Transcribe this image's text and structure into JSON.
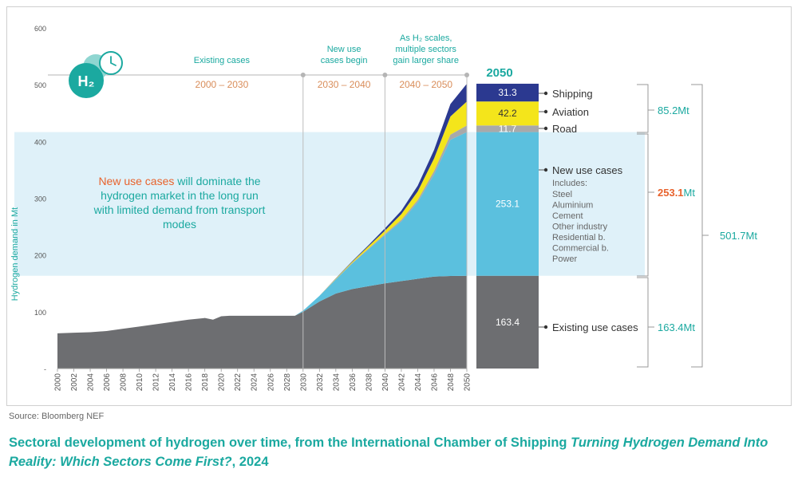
{
  "chart_data": {
    "type": "area",
    "title": "",
    "ylabel": "Hydrogen demand in Mt",
    "xlabel": "",
    "ylim": [
      0,
      600
    ],
    "yticks": [
      "-",
      "100",
      "200",
      "300",
      "400",
      "500",
      "600"
    ],
    "xlim": [
      2000,
      2050
    ],
    "x": [
      2000,
      2002,
      2004,
      2006,
      2008,
      2010,
      2012,
      2014,
      2016,
      2018,
      2019,
      2020,
      2021,
      2022,
      2024,
      2026,
      2028,
      2029,
      2030,
      2032,
      2034,
      2036,
      2038,
      2040,
      2042,
      2044,
      2046,
      2048,
      2050
    ],
    "xtick_labels": [
      "2000",
      "2002",
      "2004",
      "2006",
      "2008",
      "2010",
      "2012",
      "2014",
      "2016",
      "2018",
      "2020",
      "2022",
      "2024",
      "2026",
      "2028",
      "2030",
      "2032",
      "2034",
      "2036",
      "2038",
      "2040",
      "2042",
      "2044",
      "2046",
      "2048",
      "2050"
    ],
    "series": [
      {
        "name": "Existing use cases",
        "color": "#6d6e71",
        "values": [
          62,
          63,
          64,
          66,
          70,
          74,
          78,
          82,
          86,
          89,
          86,
          92,
          93,
          93,
          93,
          93,
          93,
          93,
          100,
          118,
          132,
          140,
          145,
          150,
          154,
          158,
          162,
          163,
          163.4
        ]
      },
      {
        "name": "New use cases",
        "color": "#5bc0de",
        "values": [
          0,
          0,
          0,
          0,
          0,
          0,
          0,
          0,
          0,
          0,
          0,
          0,
          0,
          0,
          0,
          0,
          0,
          0,
          2,
          10,
          25,
          45,
          65,
          85,
          105,
          135,
          180,
          240,
          253.1
        ]
      },
      {
        "name": "Road",
        "color": "#a9a9a9",
        "values": [
          0,
          0,
          0,
          0,
          0,
          0,
          0,
          0,
          0,
          0,
          0,
          0,
          0,
          0,
          0,
          0,
          0,
          0,
          0,
          0,
          0.5,
          1,
          1.5,
          2,
          3,
          4,
          6,
          9,
          11.7
        ]
      },
      {
        "name": "Aviation",
        "color": "#f4e51b",
        "values": [
          0,
          0,
          0,
          0,
          0,
          0,
          0,
          0,
          0,
          0,
          0,
          0,
          0,
          0,
          0,
          0,
          0,
          0,
          0,
          0,
          1,
          2,
          4,
          6,
          10,
          15,
          22,
          32,
          42.2
        ]
      },
      {
        "name": "Shipping",
        "color": "#2b3990",
        "values": [
          0,
          0,
          0,
          0,
          0,
          0,
          0,
          0,
          0,
          0,
          0,
          0,
          0,
          0,
          0,
          0,
          0,
          0,
          0,
          0,
          0.5,
          1,
          2,
          4,
          6,
          10,
          15,
          22,
          31.3
        ]
      }
    ],
    "bar_2050": {
      "label": "2050",
      "segments": [
        {
          "name": "Existing use cases",
          "value": 163.4,
          "label": "163.4",
          "color": "#6d6e71"
        },
        {
          "name": "New use cases",
          "value": 253.1,
          "label": "253.1",
          "color": "#5bc0de"
        },
        {
          "name": "Road",
          "value": 11.7,
          "label": "11.7",
          "color": "#a9a9a9"
        },
        {
          "name": "Aviation",
          "value": 42.2,
          "label": "42.2",
          "color": "#f4e51b"
        },
        {
          "name": "Shipping",
          "value": 31.3,
          "label": "31.3",
          "color": "#2b3990"
        }
      ]
    },
    "legend": {
      "shipping": "Shipping",
      "aviation": "Aviation",
      "road": "Road",
      "new_use_cases": "New use cases",
      "includes": "Includes:",
      "includes_items": [
        "Steel",
        "Aluminium",
        "Cement",
        "Other industry",
        "Residential b.",
        "Commercial b.",
        "Power"
      ],
      "existing_use_cases": "Existing use cases"
    },
    "totals": {
      "transport": "85.2Mt",
      "new_value": "253.1",
      "new_unit": "Mt",
      "existing": "163.4Mt",
      "overall": "501.7Mt"
    },
    "phases": [
      {
        "title_lines": [
          "Existing cases"
        ],
        "range": "2000 – 2030"
      },
      {
        "title_lines": [
          "New use",
          "cases begin"
        ],
        "range": "2030 – 2040"
      },
      {
        "title_lines": [
          "As H₂ scales,",
          "multiple sectors",
          "gain larger share"
        ],
        "range": "2040 – 2050"
      }
    ],
    "phase_boundaries": [
      2030,
      2040,
      2050
    ],
    "annotation": {
      "highlight": "New use cases",
      "lines": [
        " will dominate the",
        "hydrogen market in the long run",
        "with limited demand from transport",
        "modes"
      ]
    },
    "highlight_band": [
      163.4,
      416.5
    ],
    "logo_text": "H₂",
    "colors": {
      "existing": "#6d6e71",
      "new_use": "#5bc0de",
      "road": "#a9a9a9",
      "aviation": "#f4e51b",
      "shipping": "#2b3990",
      "band": "#dff1f9",
      "teal": "#1ba9a0",
      "orange": "#e8622c",
      "phase_range": "#d98d5a"
    }
  },
  "source": "Source: Bloomberg NEF",
  "caption": {
    "prefix": "Sectoral development of hydrogen over time, from the International Chamber of Shipping ",
    "italic": "Turning Hydrogen Demand Into Reality: Which Sectors Come First?",
    "suffix": ", 2024"
  }
}
